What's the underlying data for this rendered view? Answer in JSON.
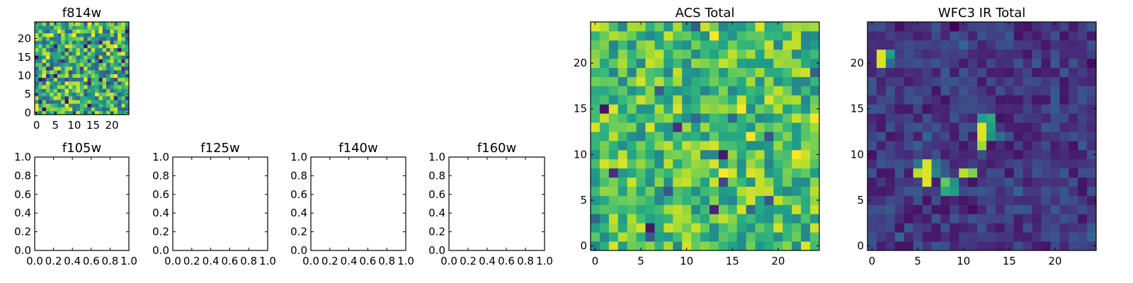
{
  "chart_data": [
    {
      "type": "heatmap",
      "title": "f814w",
      "colormap": "viridis",
      "grid_size": 25,
      "xlim": [
        -0.5,
        24.5
      ],
      "ylim": [
        -0.5,
        24.5
      ],
      "xticks": [
        "0",
        "5",
        "10",
        "15",
        "20"
      ],
      "yticks": [
        "0",
        "5",
        "10",
        "15",
        "20"
      ],
      "pixels": "noise",
      "seed": 814,
      "level_range": [
        0.3,
        0.95
      ],
      "minority_fraction": 0.07
    },
    {
      "type": "heatmap",
      "title": "f105w",
      "empty": true,
      "xlim": [
        0,
        1
      ],
      "ylim": [
        0,
        1
      ],
      "xticks": [
        "0.0",
        "0.2",
        "0.4",
        "0.6",
        "0.8",
        "1.0"
      ],
      "yticks": [
        "0.0",
        "0.2",
        "0.4",
        "0.6",
        "0.8",
        "1.0"
      ]
    },
    {
      "type": "heatmap",
      "title": "f125w",
      "empty": true,
      "xlim": [
        0,
        1
      ],
      "ylim": [
        0,
        1
      ],
      "xticks": [
        "0.0",
        "0.2",
        "0.4",
        "0.6",
        "0.8",
        "1.0"
      ],
      "yticks": [
        "0.0",
        "0.2",
        "0.4",
        "0.6",
        "0.8",
        "1.0"
      ]
    },
    {
      "type": "heatmap",
      "title": "f140w",
      "empty": true,
      "xlim": [
        0,
        1
      ],
      "ylim": [
        0,
        1
      ],
      "xticks": [
        "0.0",
        "0.2",
        "0.4",
        "0.6",
        "0.8",
        "1.0"
      ],
      "yticks": [
        "0.0",
        "0.2",
        "0.4",
        "0.6",
        "0.8",
        "1.0"
      ]
    },
    {
      "type": "heatmap",
      "title": "f160w",
      "empty": true,
      "xlim": [
        0,
        1
      ],
      "ylim": [
        0,
        1
      ],
      "xticks": [
        "0.0",
        "0.2",
        "0.4",
        "0.6",
        "0.8",
        "1.0"
      ],
      "yticks": [
        "0.0",
        "0.2",
        "0.4",
        "0.6",
        "0.8",
        "1.0"
      ]
    },
    {
      "type": "heatmap",
      "title": "ACS Total",
      "colormap": "viridis",
      "grid_size": 25,
      "xlim": [
        -0.5,
        24.5
      ],
      "ylim": [
        -0.5,
        24.5
      ],
      "xticks": [
        "0",
        "5",
        "10",
        "15",
        "20"
      ],
      "yticks": [
        "0",
        "5",
        "10",
        "15",
        "20"
      ],
      "pixels": "noise",
      "seed": 2025,
      "level_range": [
        0.45,
        0.95
      ],
      "minority_fraction": 0.03
    },
    {
      "type": "heatmap",
      "title": "WFC3 IR Total",
      "colormap": "viridis",
      "grid_size": 25,
      "xlim": [
        -0.5,
        24.5
      ],
      "ylim": [
        -0.5,
        24.5
      ],
      "xticks": [
        "0",
        "5",
        "10",
        "15",
        "20"
      ],
      "yticks": [
        "0",
        "5",
        "10",
        "15",
        "20"
      ],
      "pixels": "noise",
      "seed": 1607,
      "level_range": [
        0.05,
        0.28
      ],
      "minority_fraction": 0.02,
      "hotspots": [
        {
          "x": 1,
          "y": 20,
          "value": 0.95
        },
        {
          "x": 1,
          "y": 21,
          "value": 0.95
        },
        {
          "x": 2,
          "y": 21,
          "value": 0.55
        },
        {
          "x": 2,
          "y": 20,
          "value": 0.35
        },
        {
          "x": 12,
          "y": 13,
          "value": 0.95
        },
        {
          "x": 12,
          "y": 12,
          "value": 0.95
        },
        {
          "x": 13,
          "y": 14,
          "value": 0.6
        },
        {
          "x": 13,
          "y": 13,
          "value": 0.55
        },
        {
          "x": 13,
          "y": 12,
          "value": 0.5
        },
        {
          "x": 12,
          "y": 14,
          "value": 0.55
        },
        {
          "x": 12,
          "y": 11,
          "value": 0.85
        },
        {
          "x": 6,
          "y": 9,
          "value": 0.95
        },
        {
          "x": 6,
          "y": 8,
          "value": 0.95
        },
        {
          "x": 6,
          "y": 7,
          "value": 0.95
        },
        {
          "x": 5,
          "y": 8,
          "value": 0.9
        },
        {
          "x": 5,
          "y": 9,
          "value": 0.4
        },
        {
          "x": 7,
          "y": 9,
          "value": 0.4
        },
        {
          "x": 7,
          "y": 8,
          "value": 0.45
        },
        {
          "x": 8,
          "y": 7,
          "value": 0.75
        },
        {
          "x": 8,
          "y": 6,
          "value": 0.6
        },
        {
          "x": 9,
          "y": 6,
          "value": 0.55
        },
        {
          "x": 9,
          "y": 7,
          "value": 0.5
        },
        {
          "x": 10,
          "y": 8,
          "value": 0.9
        },
        {
          "x": 11,
          "y": 8,
          "value": 0.8
        },
        {
          "x": 5,
          "y": 11,
          "value": 0.3
        },
        {
          "x": 14,
          "y": 12,
          "value": 0.35
        }
      ]
    }
  ]
}
